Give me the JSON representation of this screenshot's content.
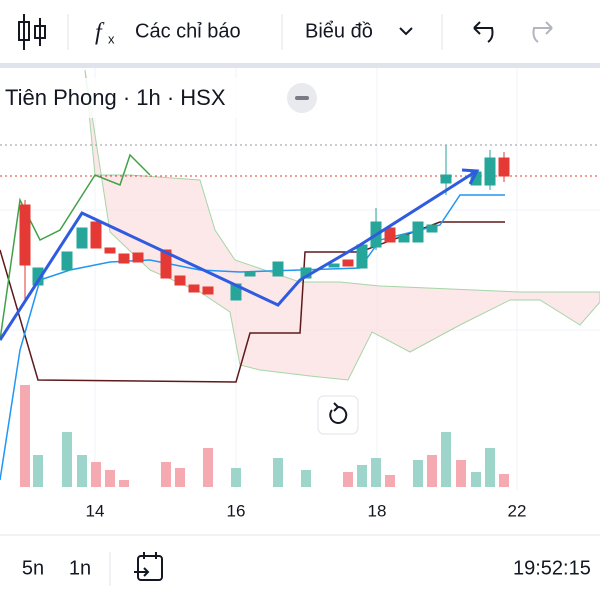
{
  "toolbar": {
    "indicators": "Các chỉ báo",
    "chart_type": "Biểu đồ"
  },
  "chart": {
    "title": "Tiên Phong · 1h · HSX",
    "x_labels": [
      "14",
      "16",
      "18",
      "22"
    ]
  },
  "bottom_bar": {
    "timeframes": [
      "5n",
      "1n"
    ],
    "clock": "19:52:15"
  }
}
